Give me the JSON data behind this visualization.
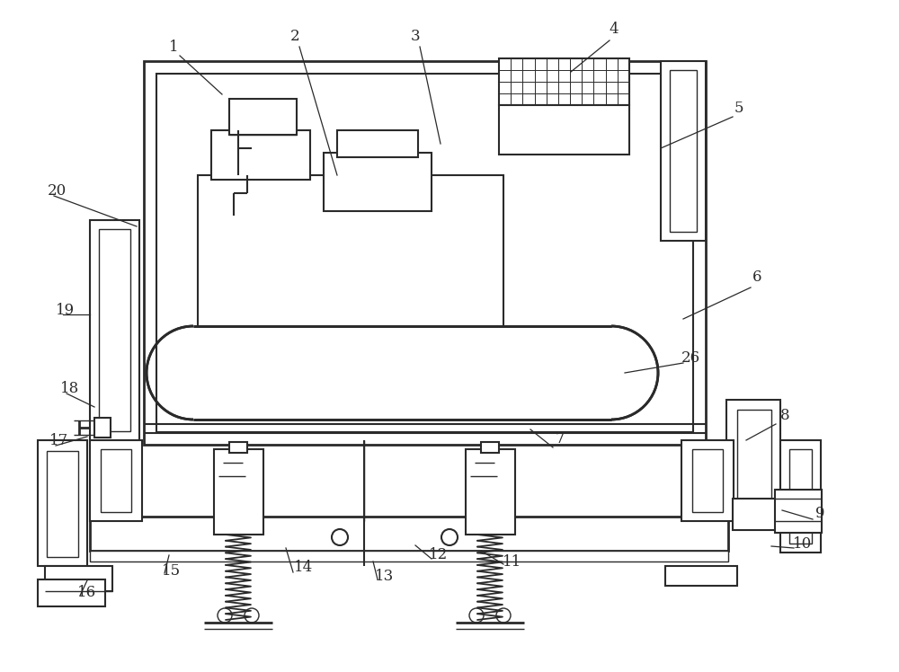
{
  "bg_color": "#ffffff",
  "line_color": "#2a2a2a",
  "lw_thin": 1.0,
  "lw_mid": 1.5,
  "lw_thick": 2.0,
  "label_fs": 12,
  "leader_lw": 0.9
}
